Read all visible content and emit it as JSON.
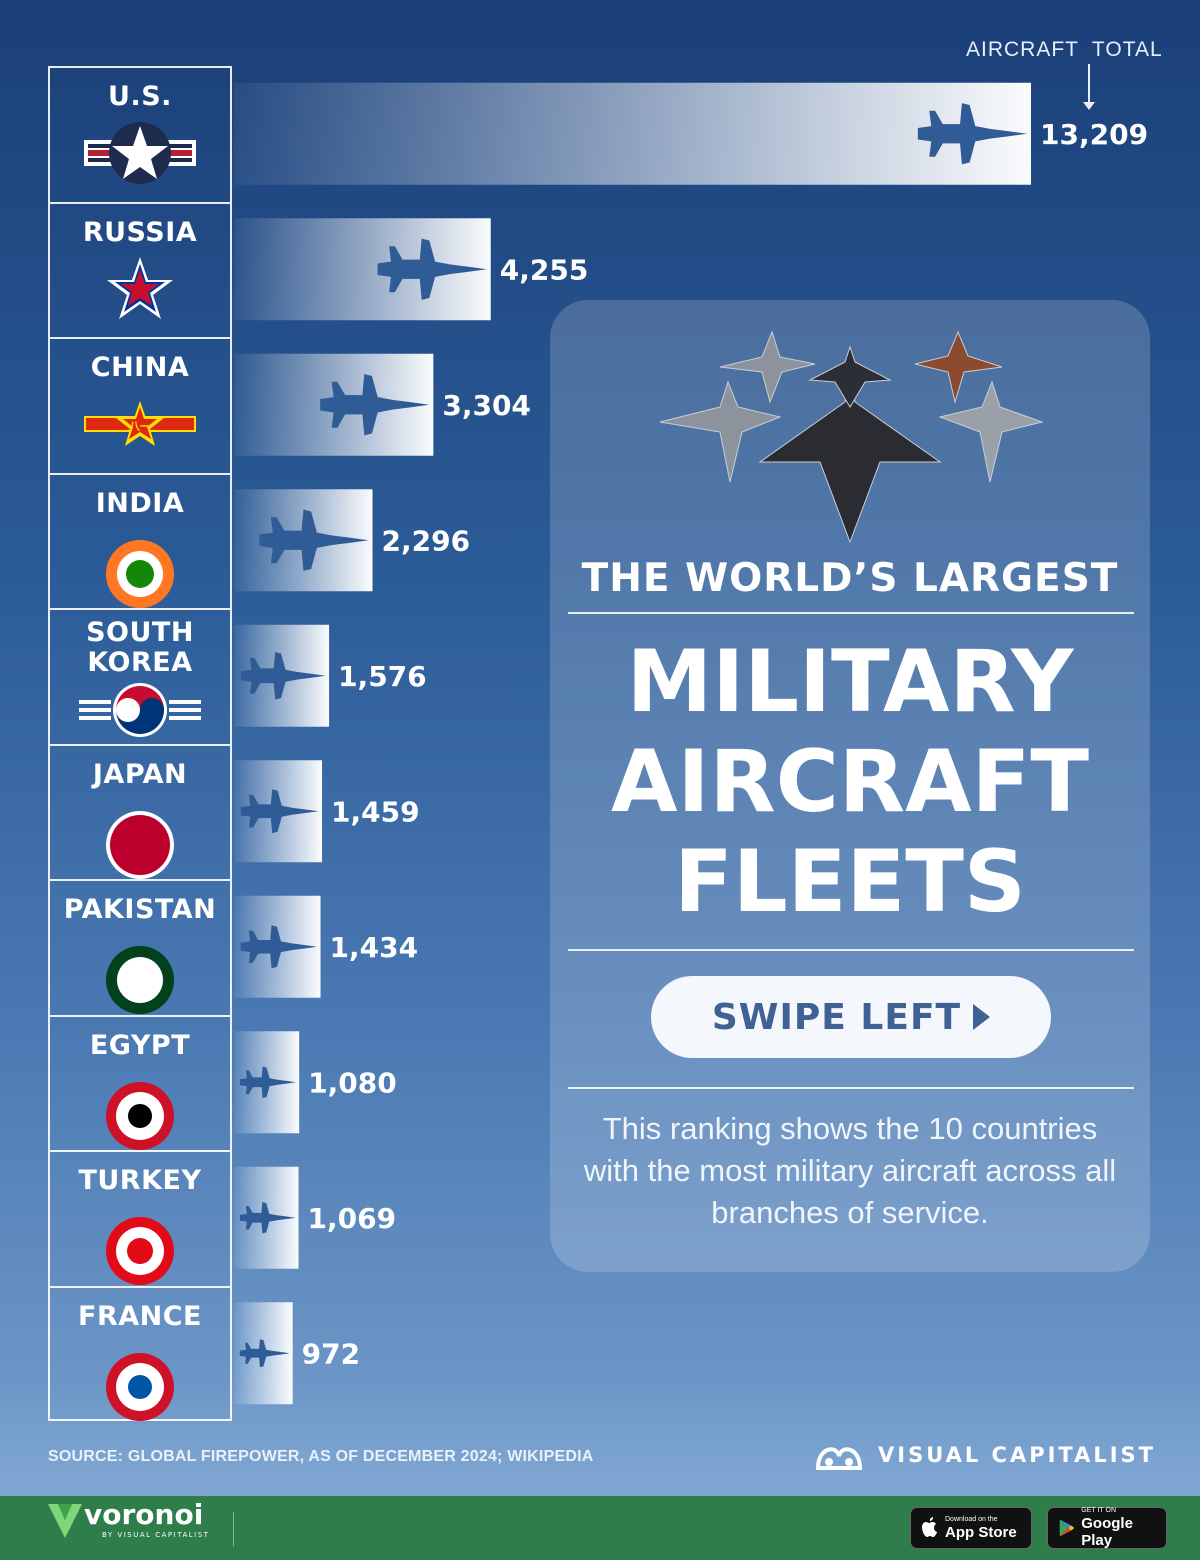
{
  "chart_data": {
    "type": "bar",
    "orientation": "horizontal",
    "categories": [
      "U.S.",
      "RUSSIA",
      "CHINA",
      "INDIA",
      "SOUTH\nKOREA",
      "JAPAN",
      "PAKISTAN",
      "EGYPT",
      "TURKEY",
      "FRANCE"
    ],
    "values": [
      13209,
      4255,
      3304,
      2296,
      1576,
      1459,
      1434,
      1080,
      1069,
      972
    ],
    "value_labels": [
      "13,209",
      "4,255",
      "3,304",
      "2,296",
      "1,576",
      "1,459",
      "1,434",
      "1,080",
      "1,069",
      "972"
    ],
    "value_header": "AIRCRAFT  TOTAL",
    "grid": false
  },
  "roundels": [
    {
      "icon": "us-star-roundel-icon",
      "colors": [
        "#1f2b4d",
        "#ffffff",
        "#b22234"
      ]
    },
    {
      "icon": "russia-star-icon",
      "colors": [
        "#c8102e",
        "#0033a0",
        "#ffffff"
      ]
    },
    {
      "icon": "china-star-flash-icon",
      "colors": [
        "#de2910",
        "#ffde00"
      ]
    },
    {
      "icon": "india-roundel-icon",
      "colors": [
        "#ff7722",
        "#ffffff",
        "#138808"
      ]
    },
    {
      "icon": "south-korea-taegeuk-icon",
      "colors": [
        "#c60c30",
        "#003478",
        "#ffffff"
      ]
    },
    {
      "icon": "japan-hinomaru-icon",
      "colors": [
        "#bc002d",
        "#ffffff"
      ]
    },
    {
      "icon": "pakistan-roundel-icon",
      "colors": [
        "#01411c",
        "#ffffff"
      ]
    },
    {
      "icon": "egypt-roundel-icon",
      "colors": [
        "#ce1126",
        "#ffffff",
        "#000000"
      ]
    },
    {
      "icon": "turkey-roundel-icon",
      "colors": [
        "#e30a17",
        "#ffffff"
      ]
    },
    {
      "icon": "france-roundel-icon",
      "colors": [
        "#ce1126",
        "#ffffff",
        "#0055a4"
      ]
    }
  ],
  "panel": {
    "subtitle": "THE WORLD’S LARGEST",
    "title": "MILITARY\nAIRCRAFT\nFLEETS",
    "swipe_label": "SWIPE LEFT",
    "description": "This ranking shows the 10 countries with the most military aircraft across all branches of service."
  },
  "source": "SOURCE: GLOBAL FIREPOWER, AS OF DECEMBER 2024; WIKIPEDIA",
  "brand": "VISUAL CAPITALIST",
  "footer": {
    "app_name": "voronoi",
    "app_sub": "BY VISUAL CAPITALIST",
    "appstore_small": "Download on the",
    "appstore_big": "App Store",
    "googleplay_small": "GET IT ON",
    "googleplay_big": "Google Play"
  },
  "colors": {
    "bar_bright": "#ffffff",
    "plane_silhouette": "#2f5b96",
    "footer_green": "#2e7d4a"
  }
}
